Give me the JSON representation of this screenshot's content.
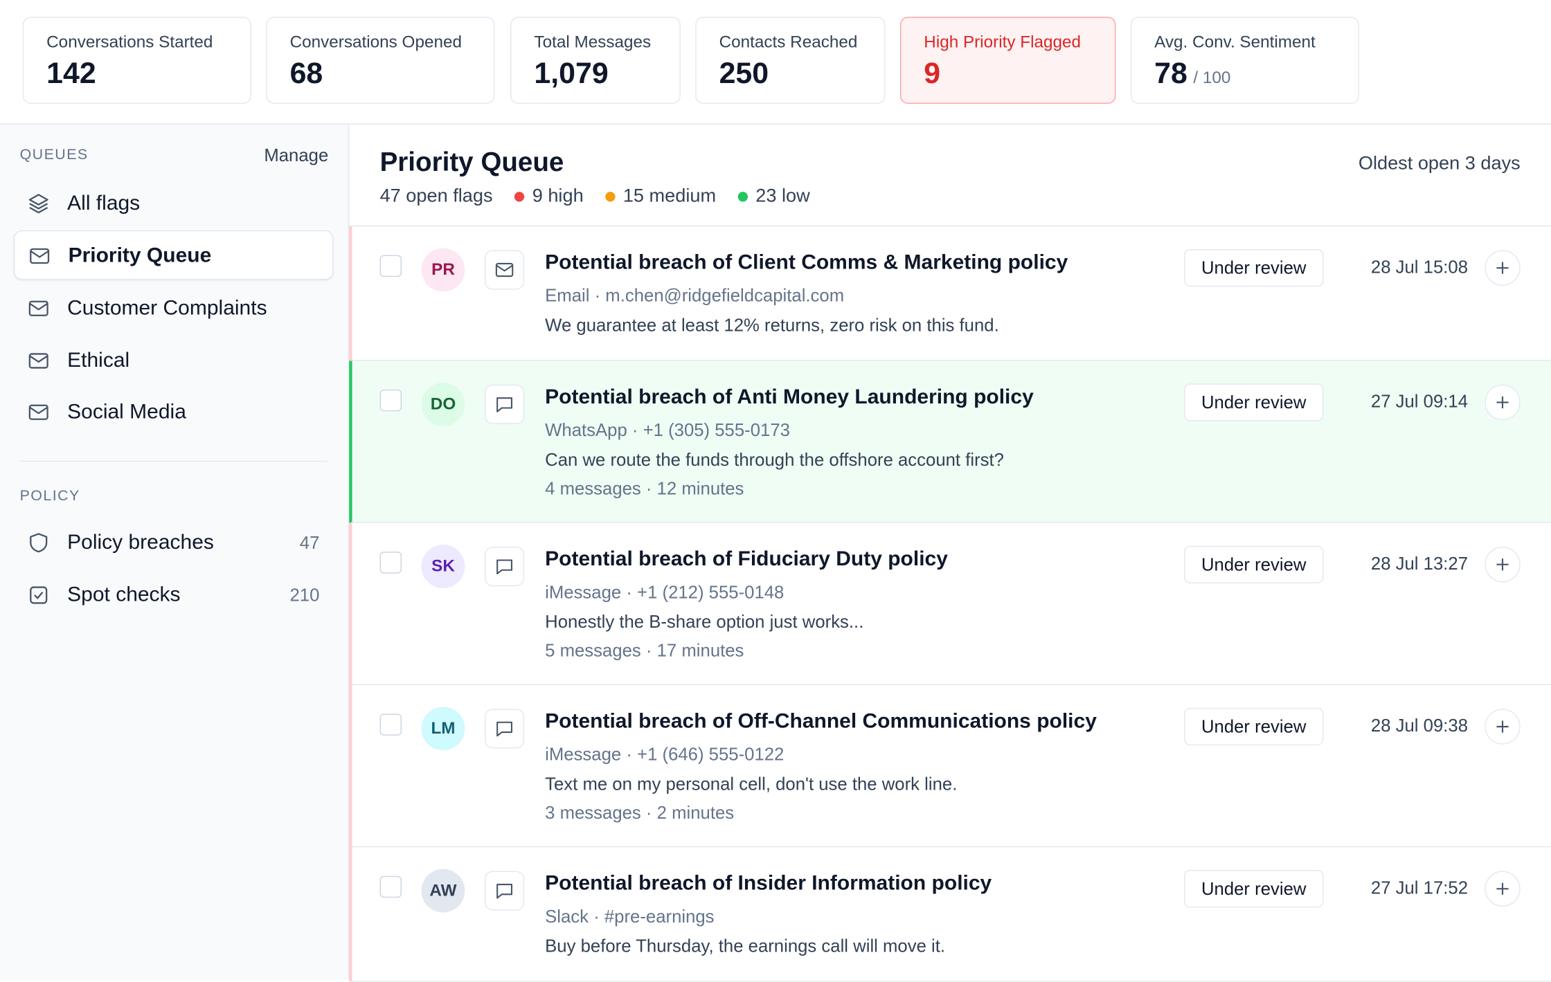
{
  "stats": [
    {
      "label": "Conversations Started",
      "value": "142"
    },
    {
      "label": "Conversations Opened",
      "value": "68"
    },
    {
      "label": "Total Messages",
      "value": "1,079"
    },
    {
      "label": "Contacts Reached",
      "value": "250"
    },
    {
      "label": "High Priority Flagged",
      "value": "9",
      "alert": true
    },
    {
      "label": "Avg. Conv. Sentiment",
      "value": "78",
      "suffix": "/ 100"
    }
  ],
  "sidebar": {
    "queues_heading": "QUEUES",
    "manage": "Manage",
    "queues": [
      "All flags",
      "Priority Queue",
      "Customer Complaints",
      "Ethical",
      "Social Media"
    ],
    "selected": 1,
    "policy_heading": "POLICY",
    "policy": [
      {
        "label": "Policy breaches",
        "count": "47"
      },
      {
        "label": "Spot checks",
        "count": "210"
      }
    ]
  },
  "header": {
    "title": "Priority Queue",
    "open": "47 open flags",
    "high": "9 high",
    "medium": "15 medium",
    "low": "23 low",
    "oldest": "Oldest open 3 days"
  },
  "rows": [
    {
      "initials": "PR",
      "avatar_bg": "#fce7f3",
      "avatar_fg": "#9d174d",
      "icon": "mail",
      "title": "Potential breach of Client Comms & Marketing policy",
      "channel": "Email · m.chen@ridgefieldcapital.com",
      "message": "We guarantee at least 12% returns, zero risk on this fund.",
      "status": "Under review",
      "time": "28 Jul 15:08"
    },
    {
      "initials": "DO",
      "avatar_bg": "#dcfce7",
      "avatar_fg": "#166534",
      "icon": "chat",
      "highlighted": true,
      "title": "Potential breach of Anti Money Laundering policy",
      "channel": "WhatsApp · +1 (305) 555-0173",
      "message": "Can we route the funds through the offshore account first?",
      "meta": "4 messages · 12 minutes",
      "status": "Under review",
      "time": "27 Jul 09:14"
    },
    {
      "initials": "SK",
      "avatar_bg": "#ede9fe",
      "avatar_fg": "#5b21b6",
      "icon": "chat",
      "title": "Potential breach of Fiduciary Duty policy",
      "channel": "iMessage · +1 (212) 555-0148",
      "message": "Honestly the B-share option just works...",
      "meta": "5 messages · 17 minutes",
      "status": "Under review",
      "time": "28 Jul 13:27"
    },
    {
      "initials": "LM",
      "avatar_bg": "#cffafe",
      "avatar_fg": "#155e75",
      "icon": "chat",
      "title": "Potential breach of Off-Channel Communications policy",
      "channel": "iMessage · +1 (646) 555-0122",
      "message": "Text me on my personal cell, don't use the work line.",
      "meta": "3 messages · 2 minutes",
      "status": "Under review",
      "time": "28 Jul 09:38"
    },
    {
      "initials": "AW",
      "avatar_bg": "#e2e8f0",
      "avatar_fg": "#334155",
      "icon": "chat",
      "title": "Potential breach of Insider Information policy",
      "channel": "Slack · #pre-earnings",
      "message": "Buy before Thursday, the earnings call will move it.",
      "status": "Under review",
      "time": "27 Jul 17:52"
    }
  ]
}
